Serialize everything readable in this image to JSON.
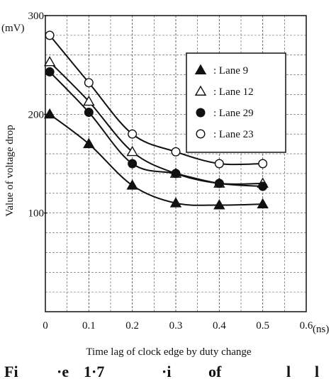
{
  "chart_data": {
    "type": "line",
    "title": "",
    "xlabel": "Time lag of clock edge by duty change",
    "ylabel": "Value of voltage drop",
    "x_unit": "(ns)",
    "y_unit": "(mV)",
    "xlim": [
      0,
      0.6
    ],
    "ylim": [
      0,
      300
    ],
    "x_ticks": [
      "0",
      "0.1",
      "0.2",
      "0.3",
      "0.4",
      "0.5",
      "0.6"
    ],
    "y_ticks": [
      "100",
      "200",
      "300"
    ],
    "grid": true,
    "legend_position": "top-right",
    "series": [
      {
        "name": ": Lane 9",
        "marker": "filled-triangle",
        "x": [
          0.01,
          0.1,
          0.2,
          0.3,
          0.4,
          0.5
        ],
        "y": [
          200,
          170,
          128,
          110,
          108,
          109
        ]
      },
      {
        "name": ": Lane 12",
        "marker": "open-triangle",
        "x": [
          0.01,
          0.1,
          0.2,
          0.3,
          0.4,
          0.5
        ],
        "y": [
          253,
          213,
          162,
          140,
          130,
          130
        ]
      },
      {
        "name": ": Lane 29",
        "marker": "filled-circle",
        "x": [
          0.01,
          0.1,
          0.2,
          0.3,
          0.4,
          0.5
        ],
        "y": [
          243,
          202,
          150,
          140,
          130,
          127
        ]
      },
      {
        "name": ": Lane 23",
        "marker": "open-circle",
        "x": [
          0.01,
          0.1,
          0.2,
          0.3,
          0.4,
          0.5
        ],
        "y": [
          280,
          232,
          180,
          162,
          150,
          150
        ]
      }
    ]
  },
  "caption_fragments": [
    "Fi",
    "·e",
    "1·7",
    "·i",
    "of",
    "l",
    "l"
  ]
}
